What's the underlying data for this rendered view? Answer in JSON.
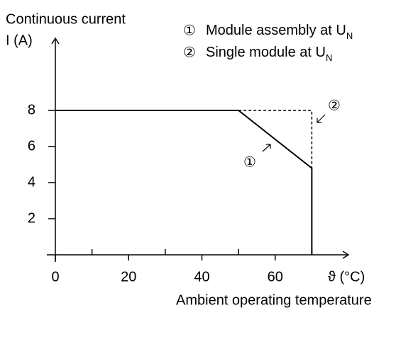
{
  "chart_data": {
    "type": "line",
    "y_label": [
      "Continuous current",
      "I (A)"
    ],
    "x_label": [
      "ϑ (°C)",
      "Ambient operating temperature"
    ],
    "series": [
      {
        "marker": "①",
        "name": "Module assembly at U",
        "name_subscript": "N",
        "color": "#000000",
        "dashed": false,
        "x": [
          0,
          50,
          70,
          70
        ],
        "values": [
          8,
          8,
          4.8,
          0
        ]
      },
      {
        "marker": "②",
        "name": "Single module at U",
        "name_subscript": "N",
        "color": "#000000",
        "dashed": true,
        "x": [
          50,
          70,
          70
        ],
        "values": [
          8,
          8,
          4.8
        ]
      }
    ],
    "xlim": [
      0,
      80
    ],
    "xticks": [
      0,
      20,
      40,
      60
    ],
    "minor_xticks": [
      10,
      30,
      50,
      70
    ],
    "ylim": [
      0,
      12
    ],
    "yticks": [
      2,
      4,
      6,
      8
    ]
  }
}
